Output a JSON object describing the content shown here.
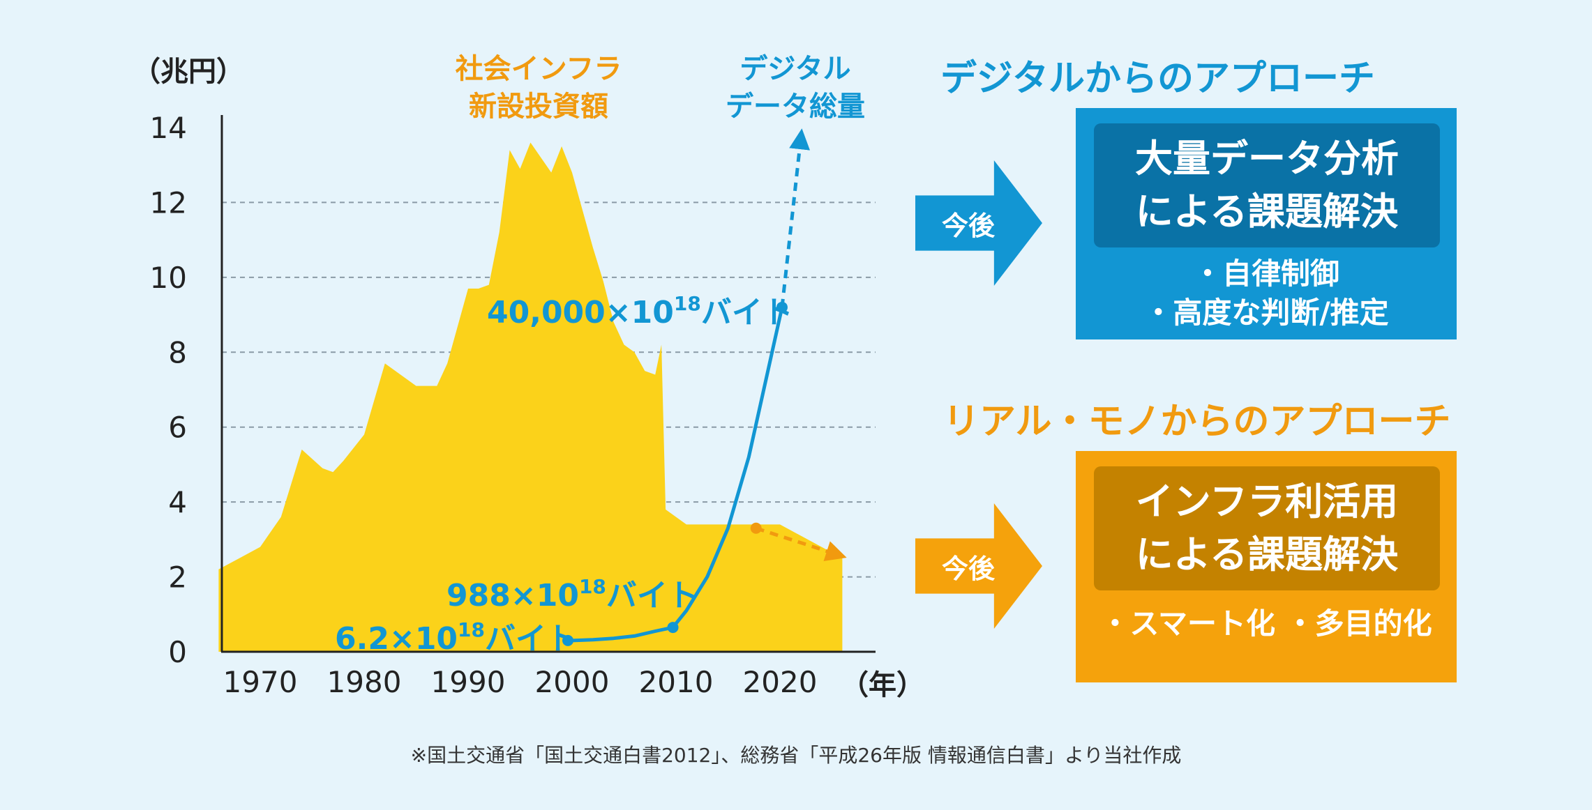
{
  "chart_data": {
    "type": "area",
    "yunit": "（兆円）",
    "xunit": "（年）",
    "ylim": [
      0,
      14
    ],
    "yticks": [
      0,
      2,
      4,
      6,
      8,
      10,
      12,
      14
    ],
    "xticks": [
      1970,
      1980,
      1990,
      2000,
      2010,
      2020
    ],
    "grid": "dashed horizontal at 2–12",
    "series": [
      {
        "name": "社会インフラ\n新設投資額",
        "color": "#fbd21a",
        "x": [
          1966,
          1968,
          1970,
          1972,
          1973,
          1974,
          1976,
          1977,
          1978,
          1980,
          1982,
          1983,
          1984,
          1985,
          1987,
          1988,
          1990,
          1991,
          1992,
          1993,
          1994,
          1995,
          1996,
          1997,
          1998,
          1999,
          2000,
          2001,
          2002,
          2003,
          2004,
          2005,
          2006,
          2007,
          2008,
          2008.6,
          2009,
          2011,
          2015,
          2020,
          2026
        ],
        "y": [
          2.2,
          2.5,
          2.8,
          3.6,
          4.5,
          5.4,
          4.9,
          4.8,
          5.1,
          5.8,
          7.7,
          7.5,
          7.3,
          7.1,
          7.1,
          7.7,
          9.7,
          9.7,
          9.8,
          11.2,
          13.4,
          12.9,
          13.6,
          13.2,
          12.8,
          13.5,
          12.8,
          11.8,
          10.8,
          9.9,
          8.8,
          8.2,
          8.0,
          7.5,
          7.4,
          8.2,
          3.8,
          3.4,
          3.4,
          3.4,
          2.5
        ]
      },
      {
        "name": "デジタル\nデータ総量",
        "color": "#1296d3",
        "x": [
          1999.6,
          2000,
          2002,
          2004,
          2006,
          2008,
          2009.7,
          2011,
          2013,
          2015,
          2017,
          2019,
          2020.2
        ],
        "y": [
          0.3,
          0.3,
          0.32,
          0.36,
          0.42,
          0.55,
          0.65,
          1.1,
          2.0,
          3.3,
          5.2,
          7.7,
          9.2
        ],
        "labelled_points": [
          {
            "x": 1999.6,
            "y": 0.3,
            "value": "6.2×10^18バイト"
          },
          {
            "x": 2009.7,
            "y": 0.65,
            "value": "988×10^18バイト"
          },
          {
            "x": 2020.2,
            "y": 9.2,
            "value": "40,000×10^18バイト"
          }
        ],
        "projection": {
          "x": [
            2020.2,
            2022
          ],
          "y": [
            9.2,
            13.7
          ],
          "style": "dashed arrow"
        }
      },
      {
        "name": "infra projection",
        "color": "#f19a0f",
        "x": [
          2017.7,
          2026
        ],
        "y": [
          3.3,
          2.6
        ],
        "style": "dashed arrow"
      }
    ]
  },
  "labels": {
    "unit_y": "（兆円）",
    "unit_x": "（年）",
    "infra_line1": "社会インフラ",
    "infra_line2": "新設投資額",
    "digital_line1": "デジタル",
    "digital_line2": "データ総量",
    "ann1_base": "6.2×10",
    "ann1_exp": "18",
    "ann1_unit": "バイト",
    "ann2_base": "988×10",
    "ann2_exp": "18",
    "ann2_unit": "バイト",
    "ann3_base": "40,000×10",
    "ann3_exp": "18",
    "ann3_unit": "バイト"
  },
  "digital_approach": {
    "heading": "デジタルからのアプローチ",
    "arrow_label": "今後",
    "box_line1": "大量データ分析",
    "box_line2": "による課題解決",
    "bullet1": "・自律制御",
    "bullet2": "・高度な判断/推定",
    "color": "#1296d3"
  },
  "real_approach": {
    "heading": "リアル・モノからのアプローチ",
    "arrow_label": "今後",
    "box_line1": "インフラ利活用",
    "box_line2": "による課題解決",
    "bullet1": "・スマート化 ・多目的化",
    "color": "#f5a20c"
  },
  "footnote": "※国土交通省「国土交通白書2012」、総務省「平成26年版 情報通信白書」より当社作成"
}
